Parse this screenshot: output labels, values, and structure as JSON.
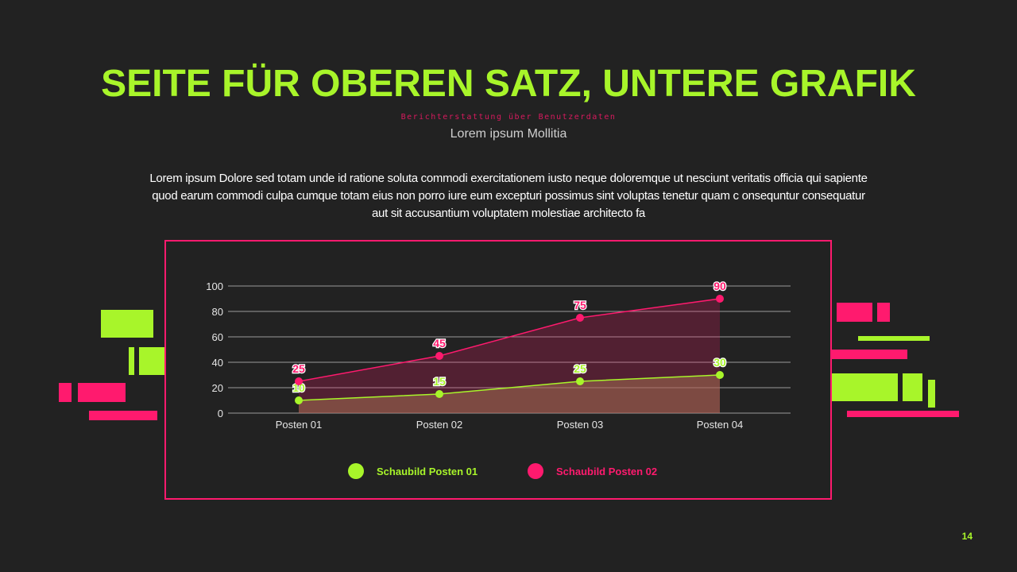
{
  "title": "SEITE FÜR OBEREN SATZ, UNTERE GRAFIK",
  "kicker": "Berichterstattung über Benutzerdaten",
  "subtitle": "Lorem ipsum Mollitia",
  "body": "Lorem ipsum Dolore sed totam unde id ratione soluta commodi exercitationem iusto neque doloremque ut nesciunt veritatis officia qui sapiente quod earum commodi culpa cumque totam eius non porro iure eum excepturi possimus sint voluptas tenetur quam c onsequntur consequatur aut sit accusantium voluptatem molestiae architecto fa",
  "page_number": "14",
  "colors": {
    "accent_green": "#a8f52a",
    "accent_pink": "#ff1a6e",
    "background": "#222222"
  },
  "chart_data": {
    "type": "area",
    "categories": [
      "Posten 01",
      "Posten 02",
      "Posten 03",
      "Posten 04"
    ],
    "ylim": [
      0,
      100
    ],
    "yticks": [
      0,
      20,
      40,
      60,
      80,
      100
    ],
    "grid": true,
    "legend": "bottom",
    "series": [
      {
        "name": "Schaubild Posten 01",
        "values": [
          10,
          15,
          25,
          30
        ],
        "color": "#a8f52a"
      },
      {
        "name": "Schaubild Posten 02",
        "values": [
          25,
          45,
          75,
          90
        ],
        "color": "#ff1a6e"
      }
    ]
  }
}
